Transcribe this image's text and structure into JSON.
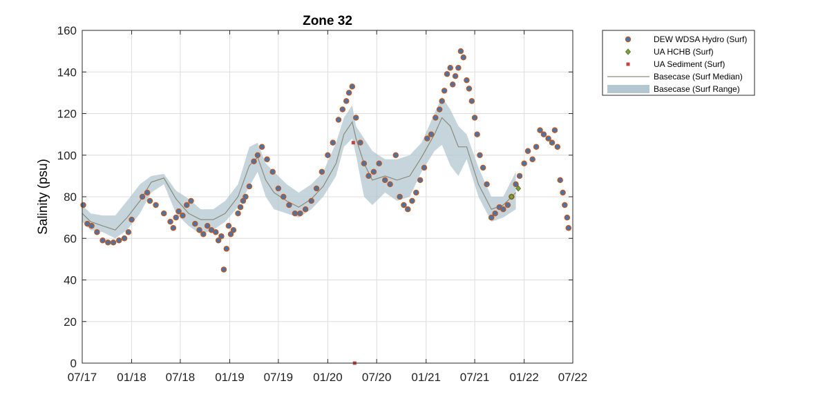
{
  "chart_data": {
    "type": "scatter",
    "title": "Zone 32",
    "xlabel": "",
    "ylabel": "Salinity (psu)",
    "ylim": [
      0,
      160
    ],
    "y_ticks": [
      0,
      20,
      40,
      60,
      80,
      100,
      120,
      140,
      160
    ],
    "xlim": [
      "2017-07-01",
      "2022-07-01"
    ],
    "x_tick_dates": [
      "2017-07-01",
      "2018-01-01",
      "2018-07-01",
      "2019-01-01",
      "2019-07-01",
      "2020-01-01",
      "2020-07-01",
      "2021-01-01",
      "2021-07-01",
      "2022-01-01",
      "2022-07-01"
    ],
    "x_tick_labels": [
      "07/17",
      "01/18",
      "07/18",
      "01/19",
      "07/19",
      "01/20",
      "07/20",
      "01/21",
      "07/21",
      "01/22",
      "07/22"
    ],
    "grid": true,
    "legend_position": "outside-top-right",
    "legend": [
      {
        "label": "DEW WDSA Hydro (Surf)",
        "marker": "circle"
      },
      {
        "label": "UA HCHB (Surf)",
        "marker": "diamond"
      },
      {
        "label": "UA Sediment (Surf)",
        "marker": "square"
      },
      {
        "label": "Basecase (Surf Median)",
        "marker": "line"
      },
      {
        "label": "Basecase (Surf Range)",
        "marker": "band"
      }
    ],
    "colors": {
      "dew_fill": "#4a74a8",
      "dew_edge": "#c0561e",
      "ua_hchb": "#7aa03c",
      "ua_sediment": "#c24444",
      "median_line": "#8a8a78",
      "range_band": "#b3c7d0"
    },
    "series": [
      {
        "name": "Basecase (Surf Range)",
        "kind": "band",
        "x": [
          "2017-07-01",
          "2017-08-01",
          "2017-09-15",
          "2017-11-01",
          "2017-12-15",
          "2018-02-01",
          "2018-03-15",
          "2018-05-01",
          "2018-06-15",
          "2018-08-01",
          "2018-09-15",
          "2018-11-01",
          "2018-12-15",
          "2019-02-01",
          "2019-03-15",
          "2019-04-15",
          "2019-05-15",
          "2019-06-15",
          "2019-08-01",
          "2019-09-15",
          "2019-11-01",
          "2019-12-15",
          "2020-02-01",
          "2020-03-01",
          "2020-04-01",
          "2020-04-15",
          "2020-05-15",
          "2020-06-15",
          "2020-08-01",
          "2020-09-15",
          "2020-11-01",
          "2020-12-15",
          "2021-02-01",
          "2021-03-01",
          "2021-04-01",
          "2021-05-01",
          "2021-06-01",
          "2021-07-15",
          "2021-09-01",
          "2021-10-15",
          "2021-12-01"
        ],
        "y_lower": [
          68,
          64,
          63,
          60,
          64,
          72,
          82,
          86,
          72,
          66,
          62,
          64,
          68,
          75,
          85,
          92,
          80,
          74,
          72,
          70,
          74,
          80,
          90,
          104,
          108,
          100,
          80,
          76,
          82,
          78,
          80,
          92,
          102,
          105,
          95,
          90,
          98,
          80,
          68,
          70,
          74
        ],
        "y_upper": [
          76,
          72,
          71,
          71,
          78,
          86,
          90,
          91,
          83,
          79,
          74,
          74,
          78,
          86,
          104,
          106,
          96,
          92,
          86,
          82,
          86,
          92,
          106,
          118,
          124,
          114,
          108,
          102,
          98,
          98,
          100,
          106,
          120,
          128,
          122,
          114,
          110,
          94,
          80,
          80,
          92
        ]
      },
      {
        "name": "Basecase (Surf Median)",
        "kind": "line",
        "x": [
          "2017-07-01",
          "2017-08-01",
          "2017-09-15",
          "2017-11-01",
          "2017-12-15",
          "2018-02-01",
          "2018-03-15",
          "2018-05-01",
          "2018-06-15",
          "2018-08-01",
          "2018-09-15",
          "2018-11-01",
          "2018-12-15",
          "2019-02-01",
          "2019-03-15",
          "2019-04-15",
          "2019-05-15",
          "2019-06-15",
          "2019-08-01",
          "2019-09-15",
          "2019-11-01",
          "2019-12-15",
          "2020-02-01",
          "2020-03-01",
          "2020-04-01",
          "2020-04-15",
          "2020-05-15",
          "2020-06-15",
          "2020-08-01",
          "2020-09-15",
          "2020-11-01",
          "2020-12-15",
          "2021-02-01",
          "2021-03-01",
          "2021-04-01",
          "2021-05-01",
          "2021-06-01",
          "2021-07-15",
          "2021-09-01",
          "2021-10-15",
          "2021-12-01"
        ],
        "y": [
          72,
          68,
          66,
          64,
          70,
          78,
          87,
          89,
          79,
          72,
          69,
          69,
          72,
          80,
          95,
          99,
          88,
          82,
          78,
          75,
          79,
          85,
          96,
          110,
          116,
          108,
          96,
          88,
          90,
          88,
          90,
          99,
          110,
          118,
          114,
          104,
          104,
          86,
          74,
          76,
          82
        ]
      },
      {
        "name": "DEW WDSA Hydro (Surf)",
        "kind": "scatter",
        "x": [
          "2017-07-05",
          "2017-07-20",
          "2017-08-05",
          "2017-08-25",
          "2017-09-15",
          "2017-10-05",
          "2017-10-25",
          "2017-11-15",
          "2017-12-05",
          "2017-12-20",
          "2018-01-01",
          "2018-02-10",
          "2018-02-28",
          "2018-03-10",
          "2018-04-01",
          "2018-05-01",
          "2018-05-25",
          "2018-06-05",
          "2018-06-15",
          "2018-06-25",
          "2018-07-10",
          "2018-07-25",
          "2018-08-10",
          "2018-08-25",
          "2018-09-10",
          "2018-09-25",
          "2018-10-10",
          "2018-10-25",
          "2018-11-10",
          "2018-11-20",
          "2018-12-01",
          "2018-12-10",
          "2018-12-20",
          "2018-12-28",
          "2019-01-05",
          "2019-01-15",
          "2019-02-01",
          "2019-02-10",
          "2019-02-20",
          "2019-03-01",
          "2019-03-15",
          "2019-04-01",
          "2019-04-15",
          "2019-05-01",
          "2019-05-20",
          "2019-06-10",
          "2019-07-01",
          "2019-07-20",
          "2019-08-10",
          "2019-09-01",
          "2019-09-20",
          "2019-10-10",
          "2019-11-01",
          "2019-11-20",
          "2019-12-10",
          "2020-01-01",
          "2020-01-20",
          "2020-02-10",
          "2020-02-25",
          "2020-03-10",
          "2020-03-20",
          "2020-04-01",
          "2020-04-15",
          "2020-05-01",
          "2020-05-15",
          "2020-06-01",
          "2020-06-20",
          "2020-07-10",
          "2020-08-01",
          "2020-08-20",
          "2020-09-10",
          "2020-09-25",
          "2020-10-10",
          "2020-10-25",
          "2020-11-10",
          "2020-11-25",
          "2020-12-10",
          "2020-12-25",
          "2021-01-05",
          "2021-01-20",
          "2021-02-05",
          "2021-02-20",
          "2021-03-01",
          "2021-03-10",
          "2021-03-20",
          "2021-04-01",
          "2021-04-10",
          "2021-04-20",
          "2021-05-01",
          "2021-05-10",
          "2021-05-20",
          "2021-06-01",
          "2021-06-10",
          "2021-06-20",
          "2021-07-01",
          "2021-07-10",
          "2021-07-20",
          "2021-08-01",
          "2021-08-15",
          "2021-09-01",
          "2021-09-15",
          "2021-10-01",
          "2021-10-15",
          "2021-11-01",
          "2021-11-15",
          "2021-12-01",
          "2021-12-15",
          "2022-01-01",
          "2022-01-15",
          "2022-02-01",
          "2022-02-15",
          "2022-03-01",
          "2022-03-15",
          "2022-04-01",
          "2022-04-15",
          "2022-04-25",
          "2022-05-05",
          "2022-05-15",
          "2022-05-25",
          "2022-06-01",
          "2022-06-10",
          "2022-06-15"
        ],
        "y": [
          76,
          67,
          66,
          63,
          59,
          58,
          58,
          59,
          60,
          63,
          69,
          80,
          82,
          78,
          76,
          72,
          68,
          65,
          70,
          73,
          71,
          76,
          78,
          67,
          64,
          62,
          66,
          64,
          63,
          59,
          61,
          45,
          55,
          66,
          62,
          64,
          72,
          75,
          78,
          80,
          85,
          97,
          100,
          104,
          98,
          92,
          84,
          80,
          76,
          72,
          72,
          74,
          78,
          84,
          92,
          100,
          106,
          117,
          122,
          126,
          130,
          133,
          118,
          106,
          96,
          90,
          92,
          96,
          88,
          86,
          100,
          80,
          76,
          74,
          78,
          82,
          88,
          94,
          108,
          110,
          118,
          122,
          126,
          131,
          139,
          142,
          134,
          138,
          142,
          150,
          147,
          136,
          132,
          126,
          118,
          110,
          100,
          94,
          86,
          70,
          72,
          75,
          74,
          76,
          80,
          86,
          90,
          96,
          102,
          98,
          104,
          112,
          110,
          108,
          106,
          112,
          104,
          88,
          82,
          76,
          70,
          65
        ]
      },
      {
        "name": "UA HCHB (Surf)",
        "kind": "scatter",
        "x": [
          "2021-11-15",
          "2021-12-10"
        ],
        "y": [
          80,
          84
        ]
      },
      {
        "name": "UA Sediment (Surf)",
        "kind": "scatter",
        "x": [
          "2020-04-05",
          "2020-04-10"
        ],
        "y": [
          106,
          0
        ]
      }
    ]
  }
}
